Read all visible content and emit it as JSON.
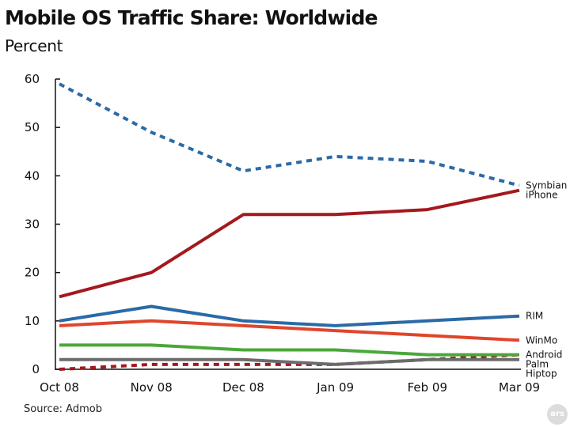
{
  "page": {
    "title": "Mobile OS Traffic Share: Worldwide",
    "subtitle": "Percent",
    "source": "Source: Admob",
    "logo_text": "ars"
  },
  "chart_data": {
    "type": "line",
    "title": "Mobile OS Traffic Share: Worldwide",
    "ylabel": "Percent",
    "xlabel": "",
    "categories": [
      "Oct 08",
      "Nov 08",
      "Dec 08",
      "Jan 09",
      "Feb 09",
      "Mar 09"
    ],
    "ylim": [
      0,
      60
    ],
    "yticks": [
      0,
      10,
      20,
      30,
      40,
      50,
      60
    ],
    "grid": false,
    "legend": "inline labels at right end of each line",
    "series": [
      {
        "name": "Symbian",
        "values": [
          59,
          49,
          41,
          44,
          43,
          38
        ],
        "color": "#2b6aa6",
        "dashed": true
      },
      {
        "name": "iPhone",
        "values": [
          15,
          20,
          32,
          32,
          33,
          37
        ],
        "color": "#a3191e",
        "dashed": false
      },
      {
        "name": "RIM",
        "values": [
          10,
          13,
          10,
          9,
          10,
          11
        ],
        "color": "#2b6aa6",
        "dashed": false
      },
      {
        "name": "WinMo",
        "values": [
          9,
          10,
          9,
          8,
          7,
          6
        ],
        "color": "#e0452b",
        "dashed": false
      },
      {
        "name": "Android",
        "values": [
          0,
          1,
          1,
          1,
          2,
          3
        ],
        "color": "#a3191e",
        "dashed": true
      },
      {
        "name": "Palm",
        "values": [
          5,
          5,
          4,
          4,
          3,
          3
        ],
        "color": "#4aa83a",
        "dashed": false
      },
      {
        "name": "Hiptop",
        "values": [
          2,
          2,
          2,
          1,
          2,
          2
        ],
        "color": "#6b6b6b",
        "dashed": false
      }
    ]
  }
}
